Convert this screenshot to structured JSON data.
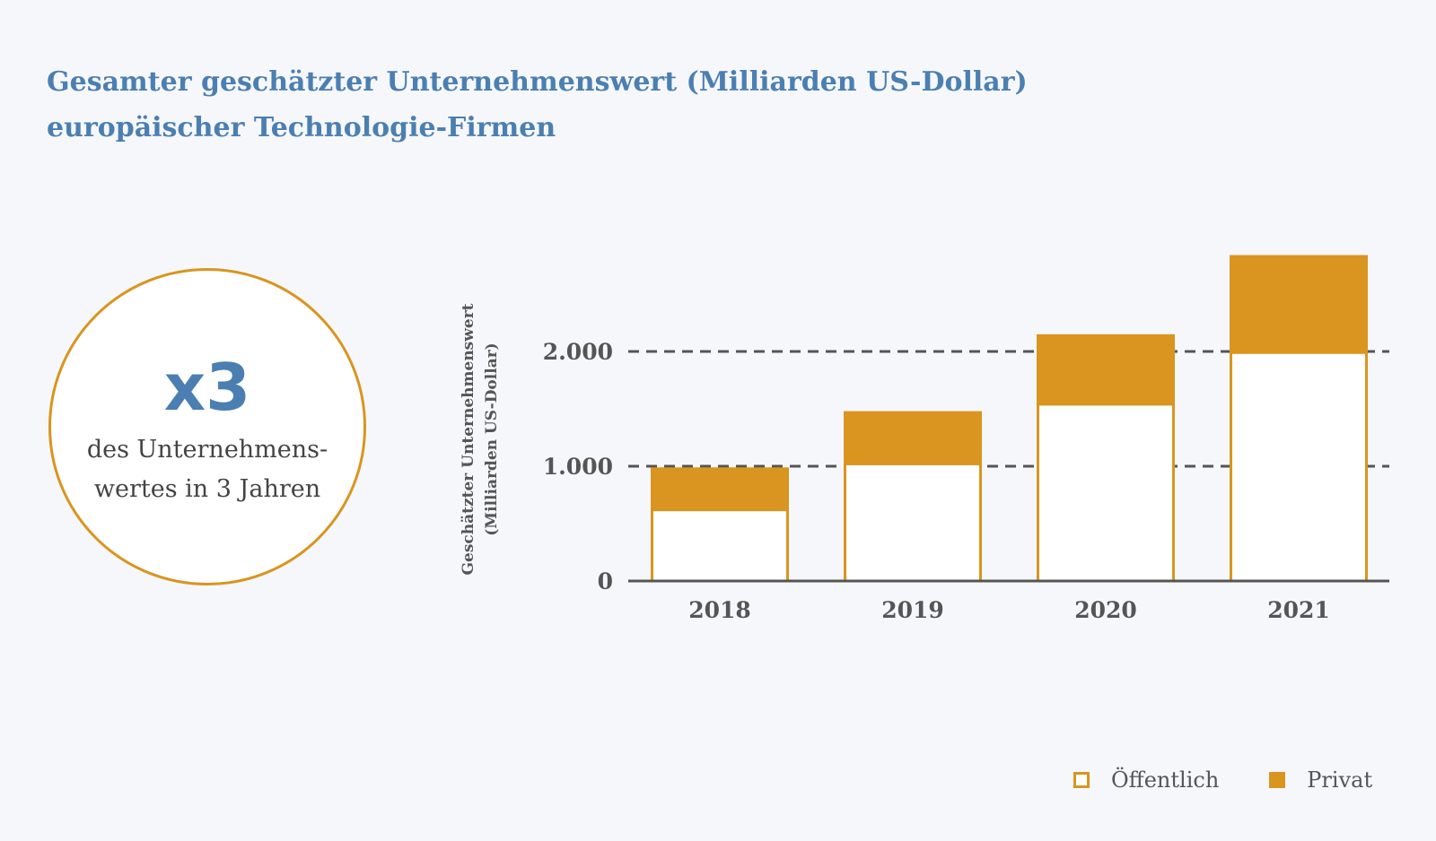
{
  "title": {
    "line1": "Gesamter geschätzter Unternehmenswert (Milliarden US-Dollar)",
    "line2": "europäischer Technologie-Firmen"
  },
  "highlight": {
    "big": "x3",
    "line1": "des Unternehmens-",
    "line2": "wertes in 3 Jahren"
  },
  "legend": {
    "public_label": "Öffentlich",
    "private_label": "Privat"
  },
  "colors": {
    "title": "#4b7fb2",
    "accent": "#d9951f",
    "grid": "#555555",
    "axis": "#555555",
    "tick_text": "#555555"
  },
  "chart_data": {
    "type": "bar",
    "stacked": true,
    "title": "Gesamter geschätzter Unternehmenswert (Milliarden US-Dollar) europäischer Technologie-Firmen",
    "categories": [
      "2018",
      "2019",
      "2020",
      "2021"
    ],
    "series": [
      {
        "name": "Öffentlich",
        "values": [
          620,
          1020,
          1540,
          1990
        ]
      },
      {
        "name": "Privat",
        "values": [
          370,
          460,
          610,
          850
        ]
      }
    ],
    "ylabel_line1": "Geschätzter Unternehmenswert",
    "ylabel_line2": "(Milliarden US-Dollar)",
    "xlabel": "",
    "ylim": [
      0,
      2840
    ],
    "yticks": [
      0,
      1000,
      2000
    ],
    "ytick_labels": [
      "0",
      "1.000",
      "2.000"
    ],
    "gridlines": [
      1000,
      2000
    ],
    "legend_position": "bottom-right"
  }
}
